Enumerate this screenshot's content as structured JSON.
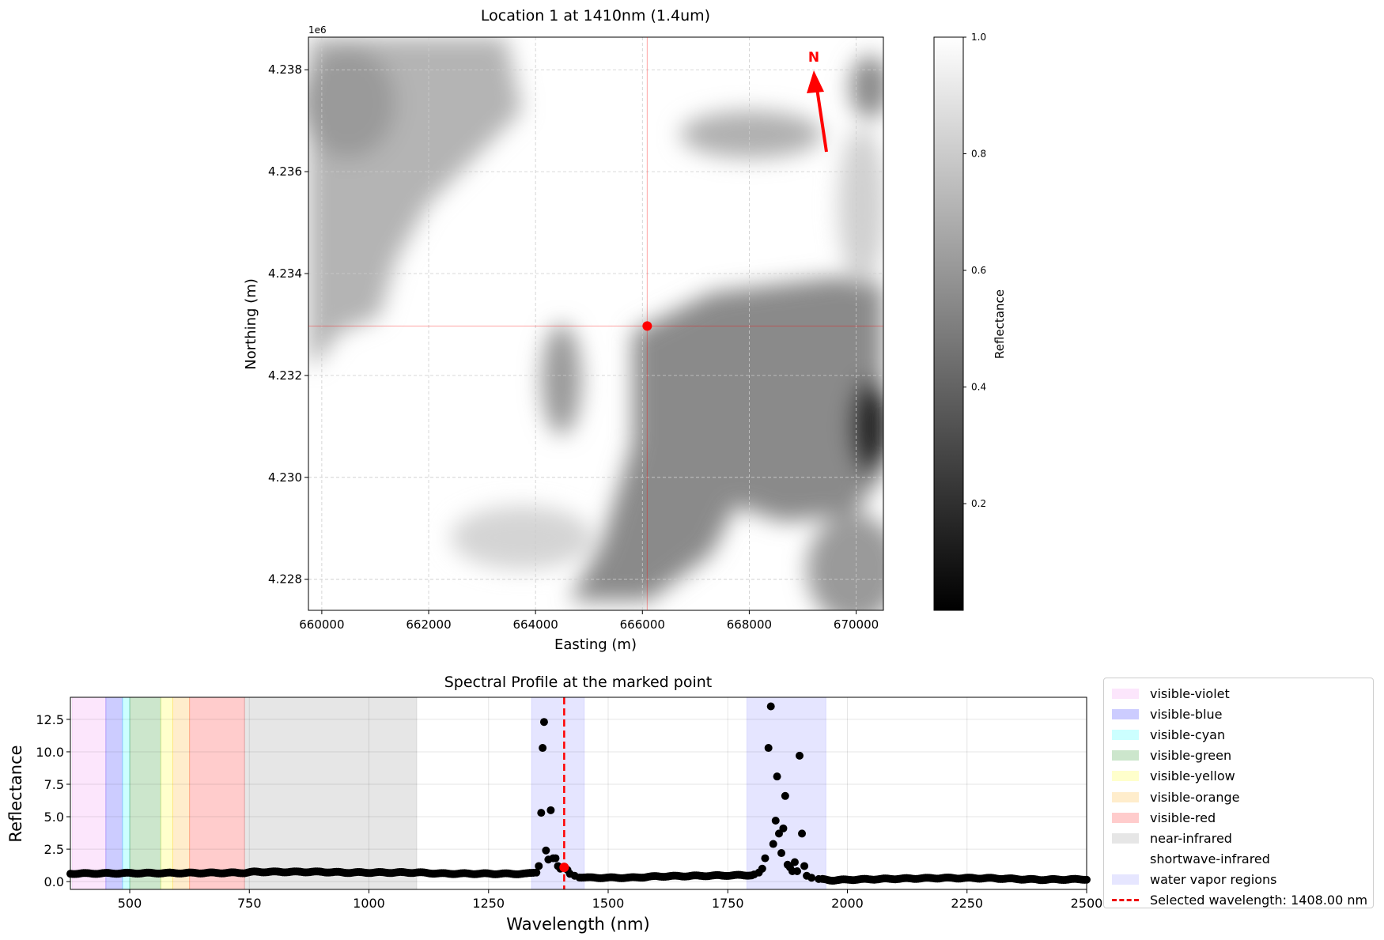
{
  "chart_data": [
    {
      "type": "heatmap",
      "title": "Location 1 at 1410nm (1.4um)",
      "xlabel": "Easting (m)",
      "ylabel": "Northing (m)",
      "y_offset_label": "1e6",
      "xlim": [
        659750,
        670510
      ],
      "ylim": [
        4.22739,
        4.23864
      ],
      "xticks": [
        660000,
        662000,
        664000,
        666000,
        668000,
        670000
      ],
      "xtick_labels": [
        "660000",
        "662000",
        "664000",
        "666000",
        "668000",
        "670000"
      ],
      "yticks": [
        4.228,
        4.23,
        4.232,
        4.234,
        4.236,
        4.238
      ],
      "ytick_labels": [
        "4.228",
        "4.230",
        "4.232",
        "4.234",
        "4.236",
        "4.238"
      ],
      "grid": true,
      "marked_point": {
        "easting": 666090,
        "northing": 4.23297,
        "color": "#ff0000"
      },
      "north_arrow_label": "N",
      "colorbar": {
        "label": "Reflectance",
        "range": [
          0.017,
          1.0
        ],
        "ticks": [
          0.2,
          0.4,
          0.6,
          0.8,
          1.0
        ],
        "tick_labels": [
          "0.2",
          "0.4",
          "0.6",
          "0.8",
          "1.0"
        ],
        "colormap": "gray"
      }
    },
    {
      "type": "scatter",
      "title": "Spectral Profile at the marked point",
      "xlabel": "Wavelength (nm)",
      "ylabel": "Reflectance",
      "xlim": [
        376,
        2500
      ],
      "ylim": [
        -0.6,
        14.2
      ],
      "xticks": [
        500,
        750,
        1000,
        1250,
        1500,
        1750,
        2000,
        2250,
        2500
      ],
      "xtick_labels": [
        "500",
        "750",
        "1000",
        "1250",
        "1500",
        "1750",
        "2000",
        "2250",
        "2500"
      ],
      "yticks": [
        0,
        2.5,
        5,
        7.5,
        10,
        12.5
      ],
      "ytick_labels": [
        "0.0",
        "2.5",
        "5.0",
        "7.5",
        "10.0",
        "12.5"
      ],
      "grid": true,
      "legend_position": "outside-right",
      "bands": [
        {
          "name": "visible-violet",
          "range": [
            380,
            450
          ],
          "color": "#ee82ee",
          "alpha": 0.2
        },
        {
          "name": "visible-blue",
          "range": [
            450,
            485
          ],
          "color": "#0000ff",
          "alpha": 0.2
        },
        {
          "name": "visible-cyan",
          "range": [
            485,
            500
          ],
          "color": "#00ffff",
          "alpha": 0.2
        },
        {
          "name": "visible-green",
          "range": [
            500,
            565
          ],
          "color": "#008000",
          "alpha": 0.2
        },
        {
          "name": "visible-yellow",
          "range": [
            565,
            590
          ],
          "color": "#ffff00",
          "alpha": 0.2
        },
        {
          "name": "visible-orange",
          "range": [
            590,
            625
          ],
          "color": "#ffa500",
          "alpha": 0.2
        },
        {
          "name": "visible-red",
          "range": [
            625,
            740
          ],
          "color": "#ff0000",
          "alpha": 0.2
        },
        {
          "name": "near-infrared",
          "range": [
            740,
            1100
          ],
          "color": "#808080",
          "alpha": 0.2
        },
        {
          "name": "shortwave-infrared",
          "range": [
            1100,
            2500
          ],
          "color": "#ffffff",
          "alpha": 0.0
        },
        {
          "name": "water vapor regions",
          "range": [
            1340,
            1450
          ],
          "color": "#0000ff",
          "alpha": 0.1
        },
        {
          "name": "water vapor regions",
          "range": [
            1790,
            1955
          ],
          "color": "#0000ff",
          "alpha": 0.1,
          "hide_legend": true
        }
      ],
      "selected_wavelength": {
        "value": 1408,
        "label": "Selected wavelength: 1408.00 nm",
        "color": "#ff0000",
        "reflectance": 1.1
      },
      "baseline": [
        [
          376,
          0.62
        ],
        [
          500,
          0.65
        ],
        [
          740,
          0.68
        ],
        [
          760,
          0.75
        ],
        [
          900,
          0.75
        ],
        [
          950,
          0.7
        ],
        [
          1100,
          0.7
        ],
        [
          1150,
          0.62
        ],
        [
          1330,
          0.6
        ],
        [
          1345,
          0.7
        ],
        [
          1440,
          0.35
        ],
        [
          1460,
          0.3
        ],
        [
          1550,
          0.3
        ],
        [
          1600,
          0.4
        ],
        [
          1700,
          0.45
        ],
        [
          1800,
          0.5
        ],
        [
          1955,
          0.15
        ],
        [
          1970,
          0.1
        ],
        [
          2000,
          0.15
        ],
        [
          2100,
          0.22
        ],
        [
          2200,
          0.28
        ],
        [
          2300,
          0.26
        ],
        [
          2400,
          0.15
        ],
        [
          2500,
          0.18
        ]
      ],
      "peak_points": [
        [
          1350,
          0.7
        ],
        [
          1355,
          1.2
        ],
        [
          1360,
          5.3
        ],
        [
          1363,
          10.3
        ],
        [
          1366,
          12.3
        ],
        [
          1370,
          2.4
        ],
        [
          1375,
          1.7
        ],
        [
          1380,
          5.5
        ],
        [
          1385,
          1.8
        ],
        [
          1390,
          1.8
        ],
        [
          1395,
          1.2
        ],
        [
          1400,
          1.0
        ],
        [
          1415,
          0.9
        ],
        [
          1420,
          0.6
        ],
        [
          1430,
          0.45
        ],
        [
          1805,
          0.55
        ],
        [
          1815,
          0.7
        ],
        [
          1822,
          1.0
        ],
        [
          1828,
          1.8
        ],
        [
          1835,
          10.3
        ],
        [
          1840,
          13.5
        ],
        [
          1845,
          2.9
        ],
        [
          1850,
          4.7
        ],
        [
          1853,
          8.1
        ],
        [
          1857,
          3.7
        ],
        [
          1862,
          2.2
        ],
        [
          1866,
          4.1
        ],
        [
          1870,
          6.6
        ],
        [
          1875,
          1.3
        ],
        [
          1880,
          1.1
        ],
        [
          1885,
          0.8
        ],
        [
          1890,
          1.5
        ],
        [
          1895,
          0.8
        ],
        [
          1900,
          9.7
        ],
        [
          1905,
          3.7
        ],
        [
          1910,
          1.2
        ],
        [
          1915,
          0.45
        ],
        [
          1925,
          0.3
        ],
        [
          1940,
          0.2
        ]
      ]
    }
  ]
}
